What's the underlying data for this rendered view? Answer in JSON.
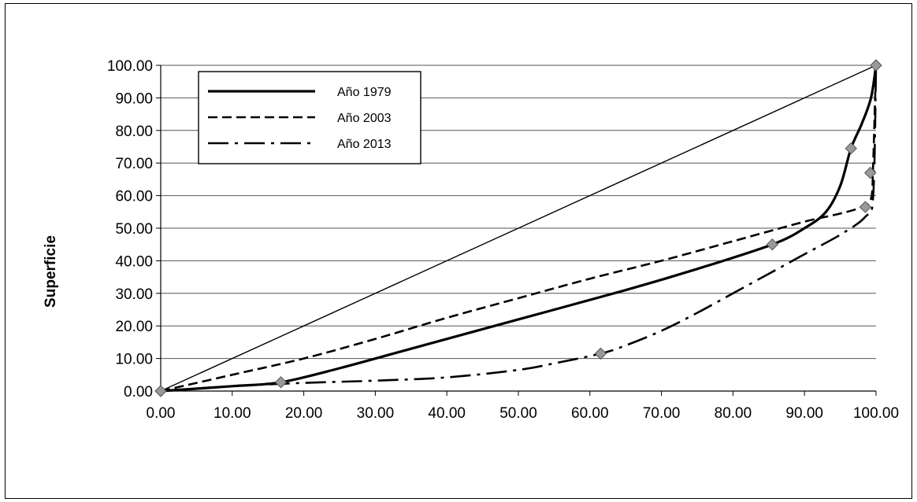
{
  "chart_data": {
    "type": "line",
    "title": "",
    "xlabel": "",
    "ylabel": "Superficie",
    "xlim": [
      0,
      100
    ],
    "ylim": [
      0,
      100
    ],
    "x_ticks": [
      "0.00",
      "10.00",
      "20.00",
      "30.00",
      "40.00",
      "50.00",
      "60.00",
      "70.00",
      "80.00",
      "90.00",
      "100.00"
    ],
    "y_ticks": [
      "0.00",
      "10.00",
      "20.00",
      "30.00",
      "40.00",
      "50.00",
      "60.00",
      "70.00",
      "80.00",
      "90.00",
      "100.00"
    ],
    "grid": "horizontal",
    "legend_position": "top-left",
    "equality_line": {
      "x": [
        0,
        100
      ],
      "y": [
        0,
        100
      ]
    },
    "series": [
      {
        "name": "Año 1979",
        "style": "solid",
        "x": [
          0,
          10,
          16.8,
          25,
          35,
          50,
          65,
          75,
          85.5,
          90,
          93,
          95,
          96.5,
          98,
          99.3,
          100
        ],
        "y": [
          0,
          1.5,
          2.7,
          7,
          13,
          22,
          31,
          37.5,
          45,
          50,
          55,
          63,
          74.5,
          82,
          90,
          100
        ]
      },
      {
        "name": "Año 2003",
        "style": "dashed",
        "x": [
          0,
          10,
          20,
          30,
          40,
          50,
          60,
          70,
          80,
          90,
          95,
          98,
          99.3,
          99.6,
          100
        ],
        "y": [
          0,
          5,
          10,
          16,
          22.5,
          28.5,
          34.5,
          40,
          46,
          52,
          54.5,
          56.5,
          59,
          70,
          100
        ]
      },
      {
        "name": "Año 2013",
        "style": "dashdot",
        "x": [
          0,
          10,
          20,
          30,
          40,
          50,
          55,
          61.5,
          65,
          70,
          75,
          80,
          85,
          90,
          95,
          98.5,
          99.6,
          100
        ],
        "y": [
          0,
          1.5,
          2.5,
          3.2,
          4.2,
          6.5,
          8.5,
          11.5,
          14,
          18.5,
          24,
          30,
          36,
          42,
          48,
          53.5,
          60,
          100
        ]
      }
    ],
    "markers": [
      {
        "x": 16.8,
        "y": 2.7
      },
      {
        "x": 85.5,
        "y": 45
      },
      {
        "x": 96.5,
        "y": 74.5
      },
      {
        "x": 98.5,
        "y": 56.5
      },
      {
        "x": 99.2,
        "y": 67
      },
      {
        "x": 61.5,
        "y": 11.5
      },
      {
        "x": 100,
        "y": 100
      },
      {
        "x": 0,
        "y": 0
      }
    ]
  }
}
